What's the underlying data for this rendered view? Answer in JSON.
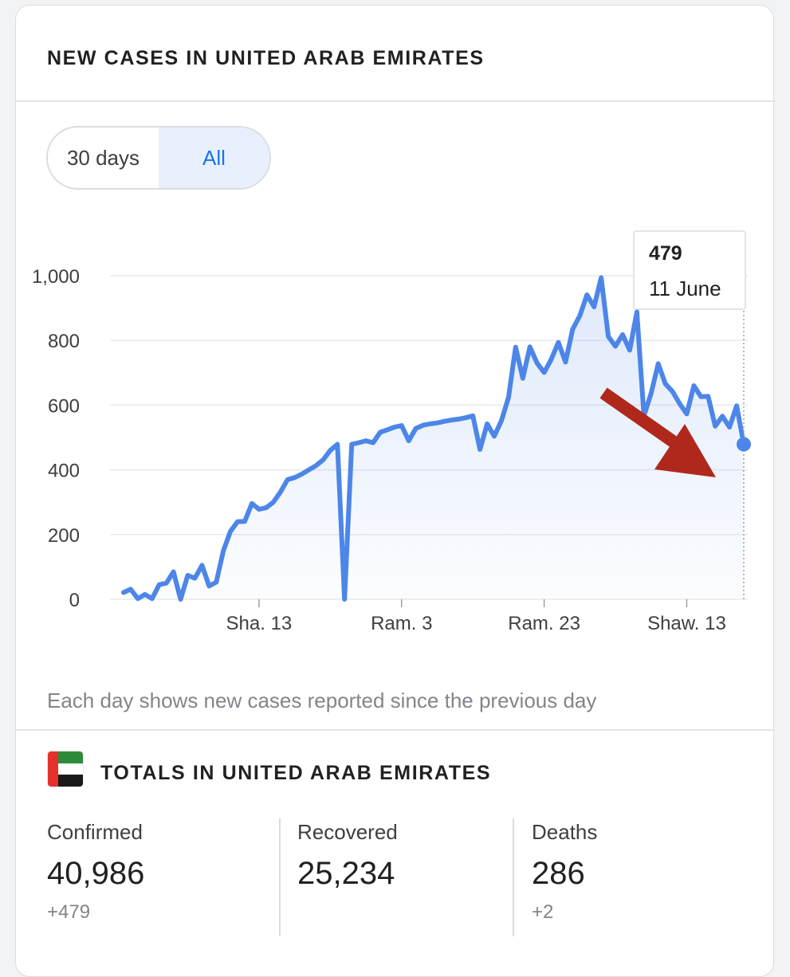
{
  "header": {
    "title": "NEW CASES IN UNITED ARAB EMIRATES"
  },
  "range_toggle": {
    "options": [
      "30 days",
      "All"
    ],
    "selected": "All"
  },
  "tooltip": {
    "value": "479",
    "date": "11 June"
  },
  "chart_data": {
    "type": "area",
    "y_ticks": [
      "0",
      "200",
      "400",
      "600",
      "800",
      "1,000"
    ],
    "y_tick_values": [
      0,
      200,
      400,
      600,
      800,
      1000
    ],
    "ylim": [
      0,
      1000
    ],
    "x_tick_labels": [
      "Sha. 13",
      "Ram. 3",
      "Ram. 23",
      "Shaw. 13"
    ],
    "x_tick_day_index": [
      19,
      39,
      59,
      79
    ],
    "xlabel": "",
    "ylabel": "",
    "grid": true,
    "line_color": "#4d86e8",
    "series": [
      {
        "values": [
          21,
          31,
          2,
          15,
          2,
          45,
          50,
          85,
          0,
          74,
          65,
          105,
          41,
          53,
          150,
          210,
          240,
          241,
          296,
          278,
          283,
          300,
          331,
          370,
          376,
          387,
          400,
          413,
          431,
          460,
          479,
          0,
          479,
          484,
          490,
          484,
          516,
          524,
          532,
          537,
          490,
          528,
          538,
          542,
          545,
          550,
          554,
          557,
          561,
          567,
          463,
          542,
          504,
          552,
          624,
          779,
          683,
          780,
          730,
          701,
          742,
          794,
          733,
          835,
          876,
          941,
          904,
          994,
          812,
          782,
          818,
          770,
          888,
          567,
          636,
          728,
          666,
          642,
          605,
          573,
          660,
          626,
          627,
          535,
          566,
          532,
          598,
          479
        ]
      }
    ],
    "highlight": {
      "index": 87,
      "value": 479,
      "label": "11 June"
    }
  },
  "footnote": "Each day shows new cases reported since the previous day",
  "totals": {
    "title": "TOTALS IN UNITED ARAB EMIRATES",
    "confirmed": {
      "label": "Confirmed",
      "value": "40,986",
      "delta": "+479"
    },
    "recovered": {
      "label": "Recovered",
      "value": "25,234"
    },
    "deaths": {
      "label": "Deaths",
      "value": "286",
      "delta": "+2"
    }
  },
  "annotation": {
    "arrow_color": "#b0281c"
  },
  "flag_icon": "uae-flag-icon"
}
